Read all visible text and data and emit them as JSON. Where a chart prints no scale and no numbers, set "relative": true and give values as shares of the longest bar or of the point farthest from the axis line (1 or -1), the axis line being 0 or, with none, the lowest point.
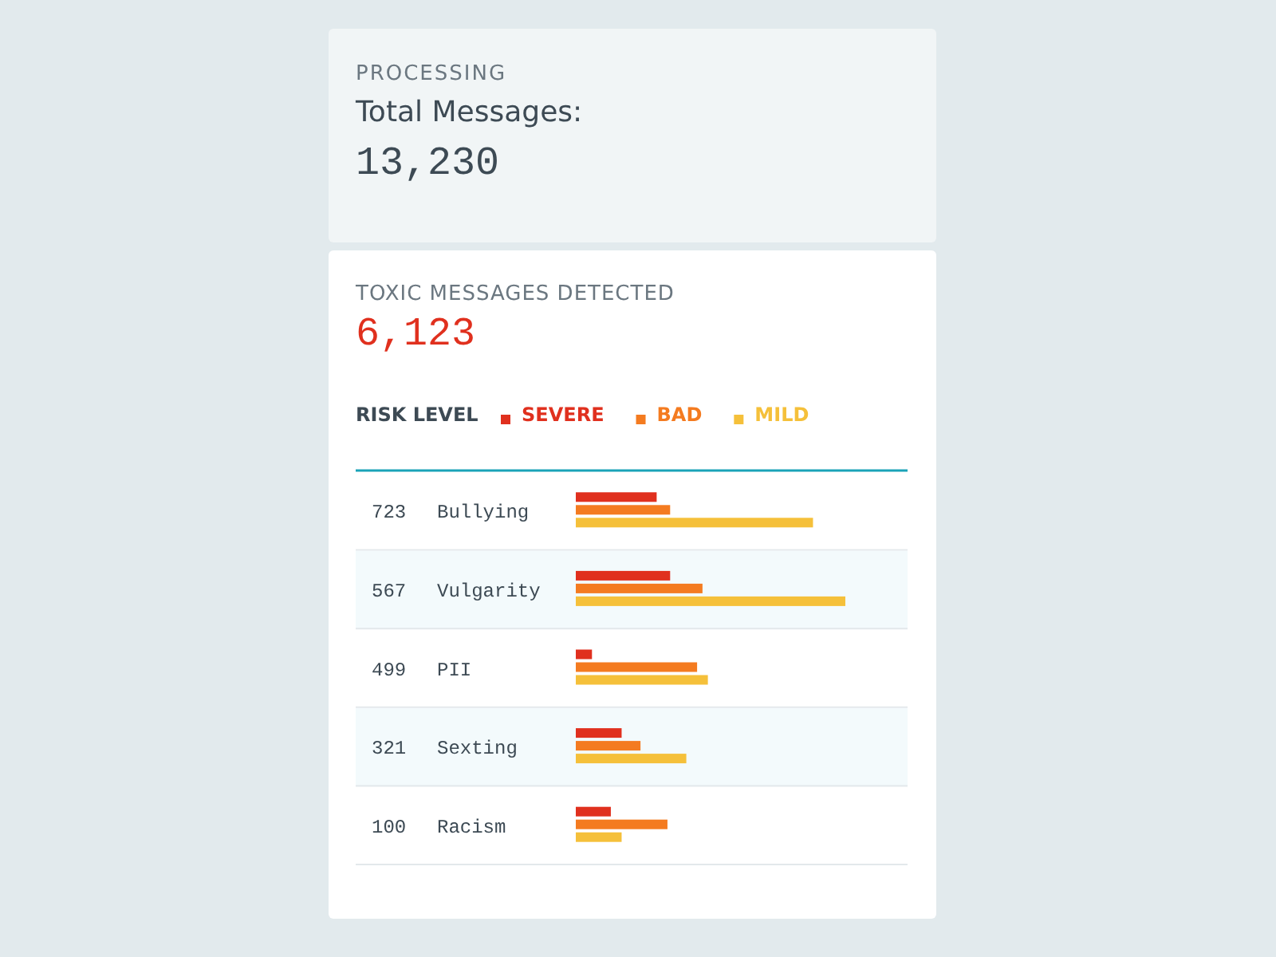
{
  "chart_data": [
    {
      "type": "other",
      "title": "Total Messages:",
      "annotations": [
        "PROCESSING",
        "13,230"
      ]
    },
    {
      "type": "bar",
      "orientation": "horizontal",
      "relative": true,
      "title": "TOXIC MESSAGES DETECTED",
      "subtitle": "6,123",
      "legend_title": "RISK LEVEL",
      "legend": "top left",
      "categories": [
        "Bullying",
        "Vulgarity",
        "PII",
        "Sexting",
        "Racism"
      ],
      "series": [
        {
          "name": "SEVERE",
          "color": "#e0301e",
          "values": [
            0.3,
            0.35,
            0.06,
            0.17,
            0.13
          ]
        },
        {
          "name": "BAD",
          "color": "#f47b20",
          "values": [
            0.35,
            0.47,
            0.45,
            0.24,
            0.34
          ]
        },
        {
          "name": "MILD",
          "color": "#f5c03a",
          "values": [
            0.88,
            1,
            0.49,
            0.41,
            0.17
          ]
        }
      ],
      "annotations": [
        "723",
        "567",
        "499",
        "321",
        "100"
      ]
    }
  ]
}
